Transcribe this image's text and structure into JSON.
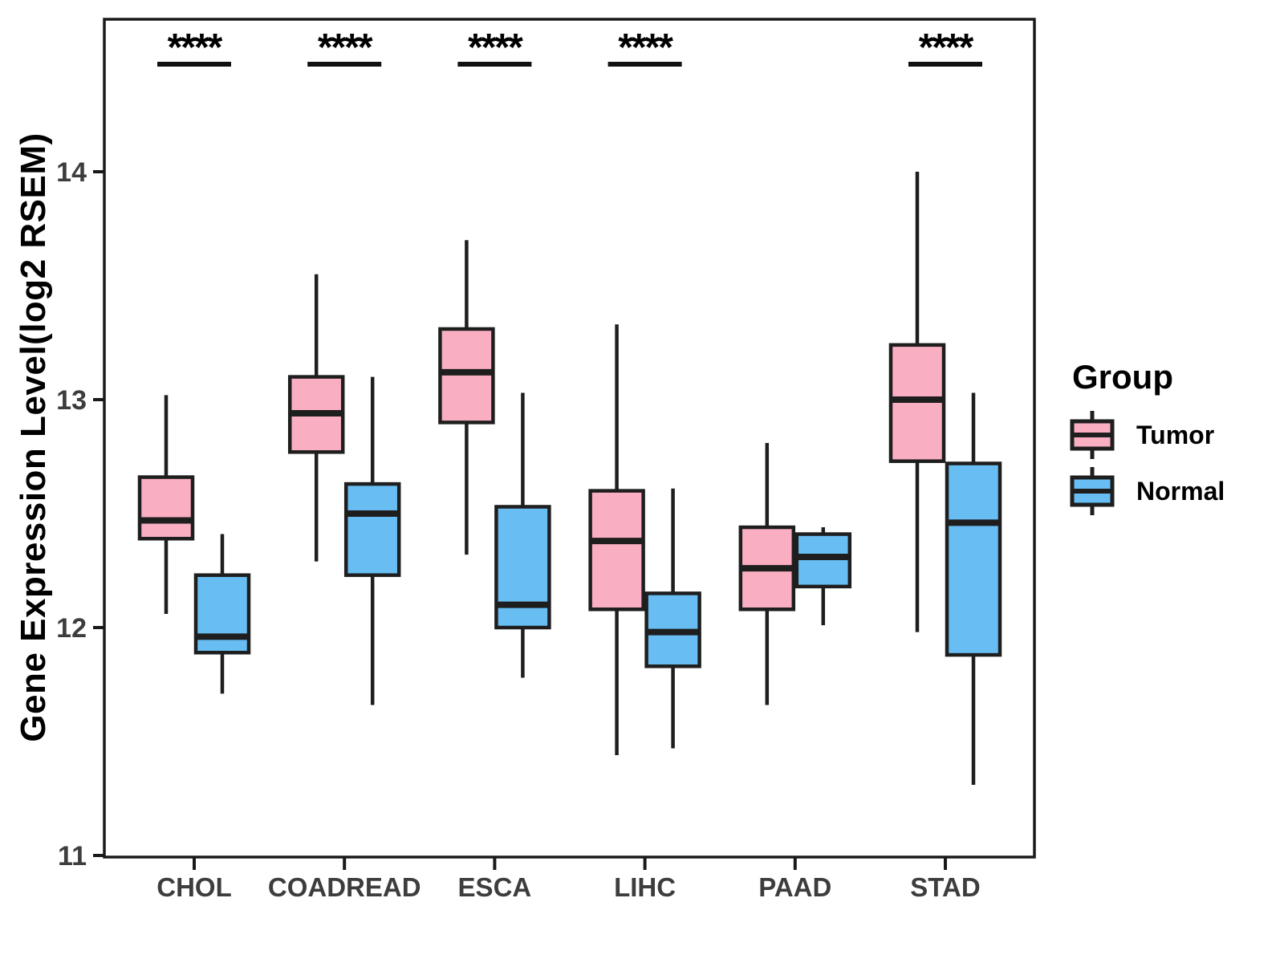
{
  "chart_data": {
    "type": "boxplot",
    "title": "",
    "xlabel": "",
    "ylabel": "Gene Expression Level(log2 RSEM)",
    "legend_title": "Group",
    "legend_position": "right",
    "grid": false,
    "ylim": [
      11,
      14.66
    ],
    "yticks": [
      14,
      13,
      12,
      11
    ],
    "categories": [
      "CHOL",
      "COADREAD",
      "ESCA",
      "LIHC",
      "PAAD",
      "STAD"
    ],
    "significance_label": "****",
    "significant_categories": [
      "CHOL",
      "COADREAD",
      "ESCA",
      "LIHC",
      "STAD"
    ],
    "colors": {
      "tumor": "#F9AEC1",
      "normal": "#68BDF2",
      "line": "#1E1E1E"
    },
    "series": [
      {
        "name": "Tumor",
        "color": "#F9AEC1",
        "boxes": [
          {
            "category": "CHOL",
            "min": 12.06,
            "q1": 12.39,
            "median": 12.47,
            "q3": 12.66,
            "max": 13.02
          },
          {
            "category": "COADREAD",
            "min": 12.29,
            "q1": 12.77,
            "median": 12.94,
            "q3": 13.1,
            "max": 13.55
          },
          {
            "category": "ESCA",
            "min": 12.32,
            "q1": 12.9,
            "median": 13.12,
            "q3": 13.31,
            "max": 13.7
          },
          {
            "category": "LIHC",
            "min": 11.44,
            "q1": 12.08,
            "median": 12.38,
            "q3": 12.6,
            "max": 13.33
          },
          {
            "category": "PAAD",
            "min": 11.66,
            "q1": 12.08,
            "median": 12.26,
            "q3": 12.44,
            "max": 12.81
          },
          {
            "category": "STAD",
            "min": 11.98,
            "q1": 12.73,
            "median": 13.0,
            "q3": 13.24,
            "max": 14.0
          }
        ]
      },
      {
        "name": "Normal",
        "color": "#68BDF2",
        "boxes": [
          {
            "category": "CHOL",
            "min": 11.71,
            "q1": 11.89,
            "median": 11.96,
            "q3": 12.23,
            "max": 12.41
          },
          {
            "category": "COADREAD",
            "min": 11.66,
            "q1": 12.23,
            "median": 12.5,
            "q3": 12.63,
            "max": 13.1
          },
          {
            "category": "ESCA",
            "min": 11.78,
            "q1": 12.0,
            "median": 12.1,
            "q3": 12.53,
            "max": 13.03
          },
          {
            "category": "LIHC",
            "min": 11.47,
            "q1": 11.83,
            "median": 11.98,
            "q3": 12.15,
            "max": 12.61
          },
          {
            "category": "PAAD",
            "min": 12.01,
            "q1": 12.18,
            "median": 12.31,
            "q3": 12.41,
            "max": 12.44
          },
          {
            "category": "STAD",
            "min": 11.31,
            "q1": 11.88,
            "median": 12.46,
            "q3": 12.72,
            "max": 13.03
          }
        ]
      }
    ]
  }
}
